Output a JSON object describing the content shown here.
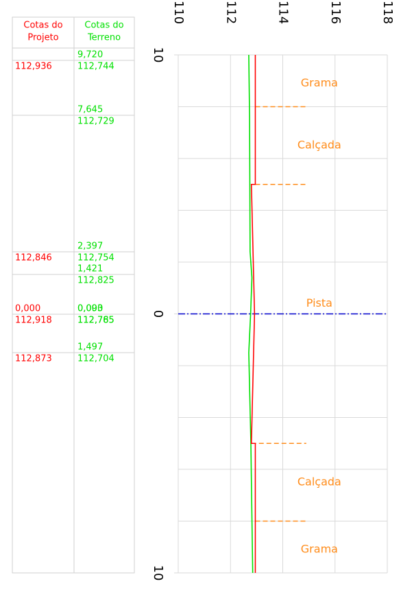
{
  "table": {
    "headers": [
      [
        "Cotas do",
        "Projeto"
      ],
      [
        "Cotas do",
        "Terreno"
      ]
    ],
    "rows": [
      {
        "project_station": [],
        "project": [
          "112,936"
        ],
        "terrain_station": [
          "9,720"
        ],
        "terrain": [
          "112,744"
        ]
      },
      {
        "project_station": [],
        "project": [],
        "terrain_station": [
          "7,645"
        ],
        "terrain": [
          "112,729"
        ]
      },
      {
        "project_station": [],
        "project": [
          "112,846"
        ],
        "terrain_station": [
          "2,397"
        ],
        "terrain": [
          "112,754"
        ]
      },
      {
        "project_station": [],
        "project": [],
        "terrain_station": [
          "1,421"
        ],
        "terrain": [
          "112,825"
        ]
      },
      {
        "project_station": [
          "0,000"
        ],
        "project": [
          "112,918"
        ],
        "terrain_station": [
          "0,000",
          "0,093"
        ],
        "terrain": [
          "112,765",
          "112,785"
        ]
      },
      {
        "project_station": [],
        "project": [
          "112,873"
        ],
        "terrain_station": [
          "1,497"
        ],
        "terrain": [
          "112,704"
        ]
      }
    ]
  },
  "chart_data": {
    "type": "line",
    "xlim": [
      110,
      118
    ],
    "xticks": [
      110,
      112,
      114,
      116,
      118
    ],
    "ylim": [
      -10,
      10
    ],
    "yticks": [
      {
        "value": 10,
        "label": "10"
      },
      0,
      {
        "value": -10,
        "label": "10"
      }
    ],
    "ygrid": [
      -10,
      -8,
      -6,
      -4,
      -2,
      0,
      2,
      4,
      6,
      8,
      10
    ],
    "grid": true,
    "series": [
      {
        "name": "Projeto",
        "color": "#ff0000",
        "x": [
          10,
          5,
          5,
          0,
          -5,
          -5,
          -10
        ],
        "values": [
          112.95,
          112.95,
          112.8,
          112.92,
          112.8,
          112.95,
          112.95
        ]
      },
      {
        "name": "Terreno",
        "color": "#00e000",
        "x": [
          10,
          7.6,
          2.4,
          1.4,
          0,
          -1.5,
          -5,
          -10
        ],
        "values": [
          112.7,
          112.73,
          112.75,
          112.82,
          112.77,
          112.7,
          112.78,
          112.85
        ]
      }
    ],
    "centerline": {
      "at": 0,
      "color": "#0000cc"
    },
    "zone_lines": [
      {
        "at": 8,
        "from": 112.95,
        "to": 114.9
      },
      {
        "at": 5,
        "from": 112.95,
        "to": 114.9
      },
      {
        "at": -5,
        "from": 112.8,
        "to": 114.9
      },
      {
        "at": -8,
        "from": 112.95,
        "to": 114.9
      }
    ],
    "zone_color": "#ff8c1a",
    "annotations": [
      {
        "text": "Grama",
        "at": 8.9,
        "elevation": 115.4
      },
      {
        "text": "Calçada",
        "at": 6.5,
        "elevation": 115.4
      },
      {
        "text": "Pista",
        "at": 0.4,
        "elevation": 115.4
      },
      {
        "text": "Calçada",
        "at": -6.5,
        "elevation": 115.4
      },
      {
        "text": "Grama",
        "at": -9.1,
        "elevation": 115.4
      }
    ]
  }
}
